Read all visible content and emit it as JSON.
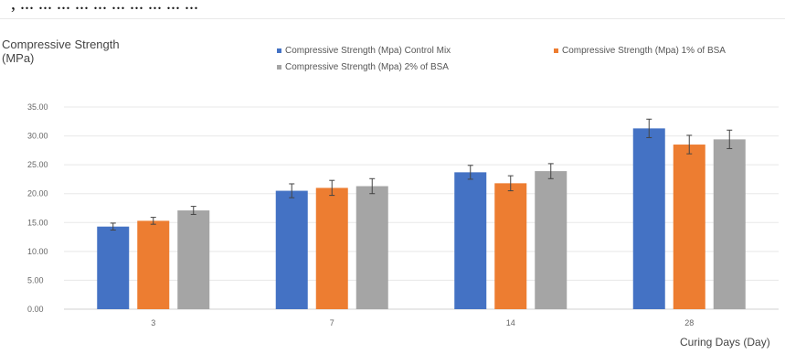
{
  "page": {
    "top_text": ", ... ... ... ...  ... ... ... ... ... ..."
  },
  "chart_data": {
    "type": "bar",
    "title": "",
    "ylabel": "Compressive Strength\n(MPa)",
    "xlabel": "Curing Days (Day)",
    "categories": [
      "3",
      "7",
      "14",
      "28"
    ],
    "ylim": [
      0,
      35
    ],
    "yticks": [
      "0.00",
      "5.00",
      "10.00",
      "15.00",
      "20.00",
      "25.00",
      "30.00",
      "35.00"
    ],
    "legend_position": "top",
    "grid": true,
    "series": [
      {
        "name": "Compressive Strength (Mpa) Control Mix",
        "color": "#4472C4",
        "values": [
          14.3,
          20.5,
          23.7,
          31.3
        ],
        "errors": [
          0.6,
          1.2,
          1.2,
          1.6
        ]
      },
      {
        "name": "Compressive Strength (Mpa) 1% of BSA",
        "color": "#ED7D31",
        "values": [
          15.3,
          21.0,
          21.8,
          28.5
        ],
        "errors": [
          0.6,
          1.3,
          1.3,
          1.6
        ]
      },
      {
        "name": "Compressive Strength (Mpa) 2% of BSA",
        "color": "#A5A5A5",
        "values": [
          17.1,
          21.3,
          23.9,
          29.4
        ],
        "errors": [
          0.7,
          1.3,
          1.3,
          1.6
        ]
      }
    ]
  }
}
